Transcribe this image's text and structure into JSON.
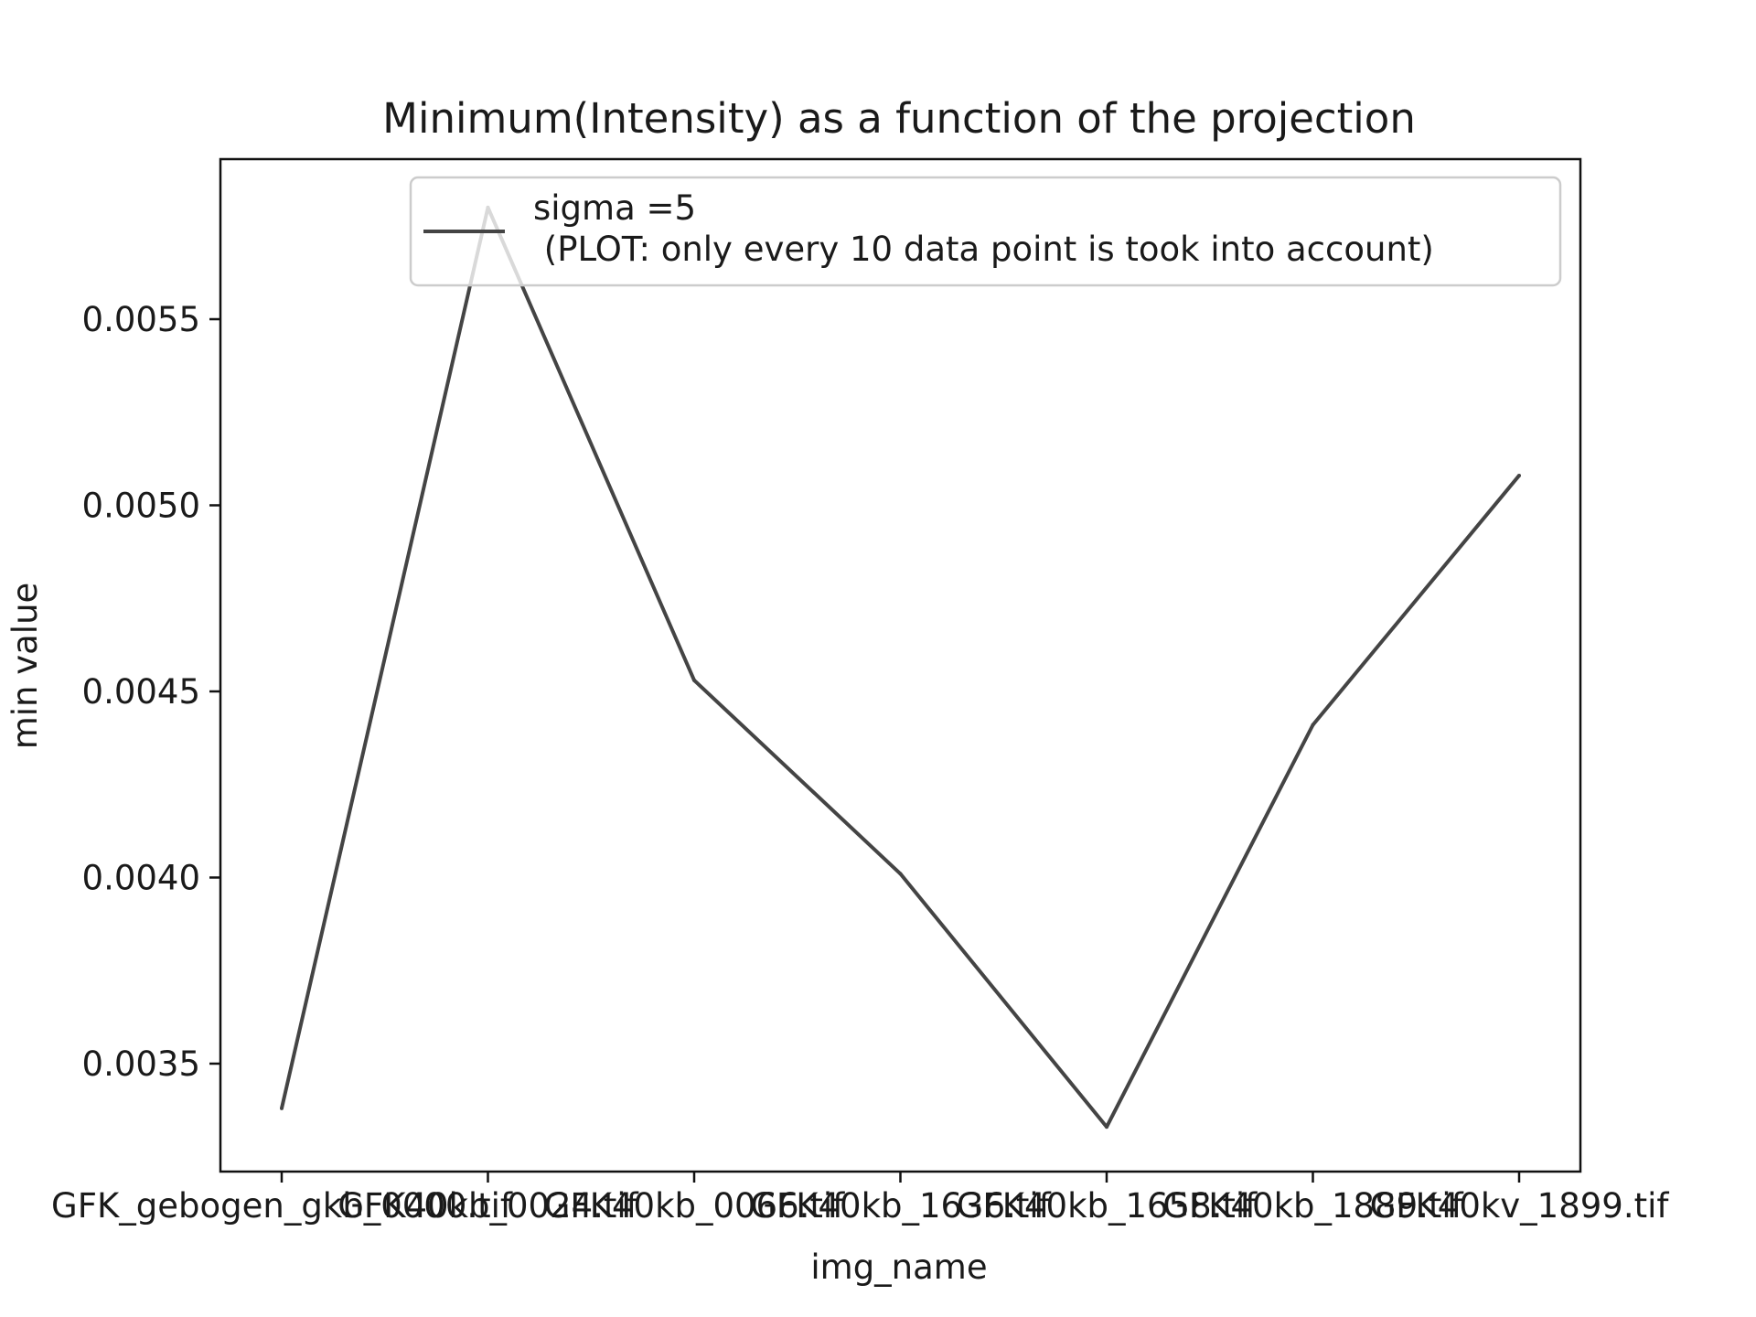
{
  "chart_data": {
    "type": "line",
    "title": "Minimum(Intensity) as a function of the projection",
    "xlabel": "img_name",
    "ylabel": "min value",
    "categories": [
      "GFK_gebogen_gkb_0000.tif",
      "GFK40kb_0024.tif",
      "GFK40kb_0066.tif",
      "GFK40kb_1636.tif",
      "GFK40kb_1658.tif",
      "GFK40kb_1889.tif",
      "GFK40kv_1899.tif"
    ],
    "series": [
      {
        "name": "sigma =5\n (PLOT: only every 10 data point is took into account)",
        "values": [
          0.00338,
          0.0058,
          0.00453,
          0.00401,
          0.00333,
          0.00441,
          0.00508
        ],
        "color": "#444444"
      }
    ],
    "yticks": [
      "0.0035",
      "0.0040",
      "0.0045",
      "0.0050",
      "0.0055"
    ],
    "ytick_values": [
      0.0035,
      0.004,
      0.0045,
      0.005,
      0.0055
    ],
    "ylim": [
      0.00321,
      0.00593
    ],
    "grid": false,
    "legend_position": "upper-right",
    "legend_lines": [
      "sigma =5",
      " (PLOT: only every 10 data point is took into account)"
    ]
  }
}
